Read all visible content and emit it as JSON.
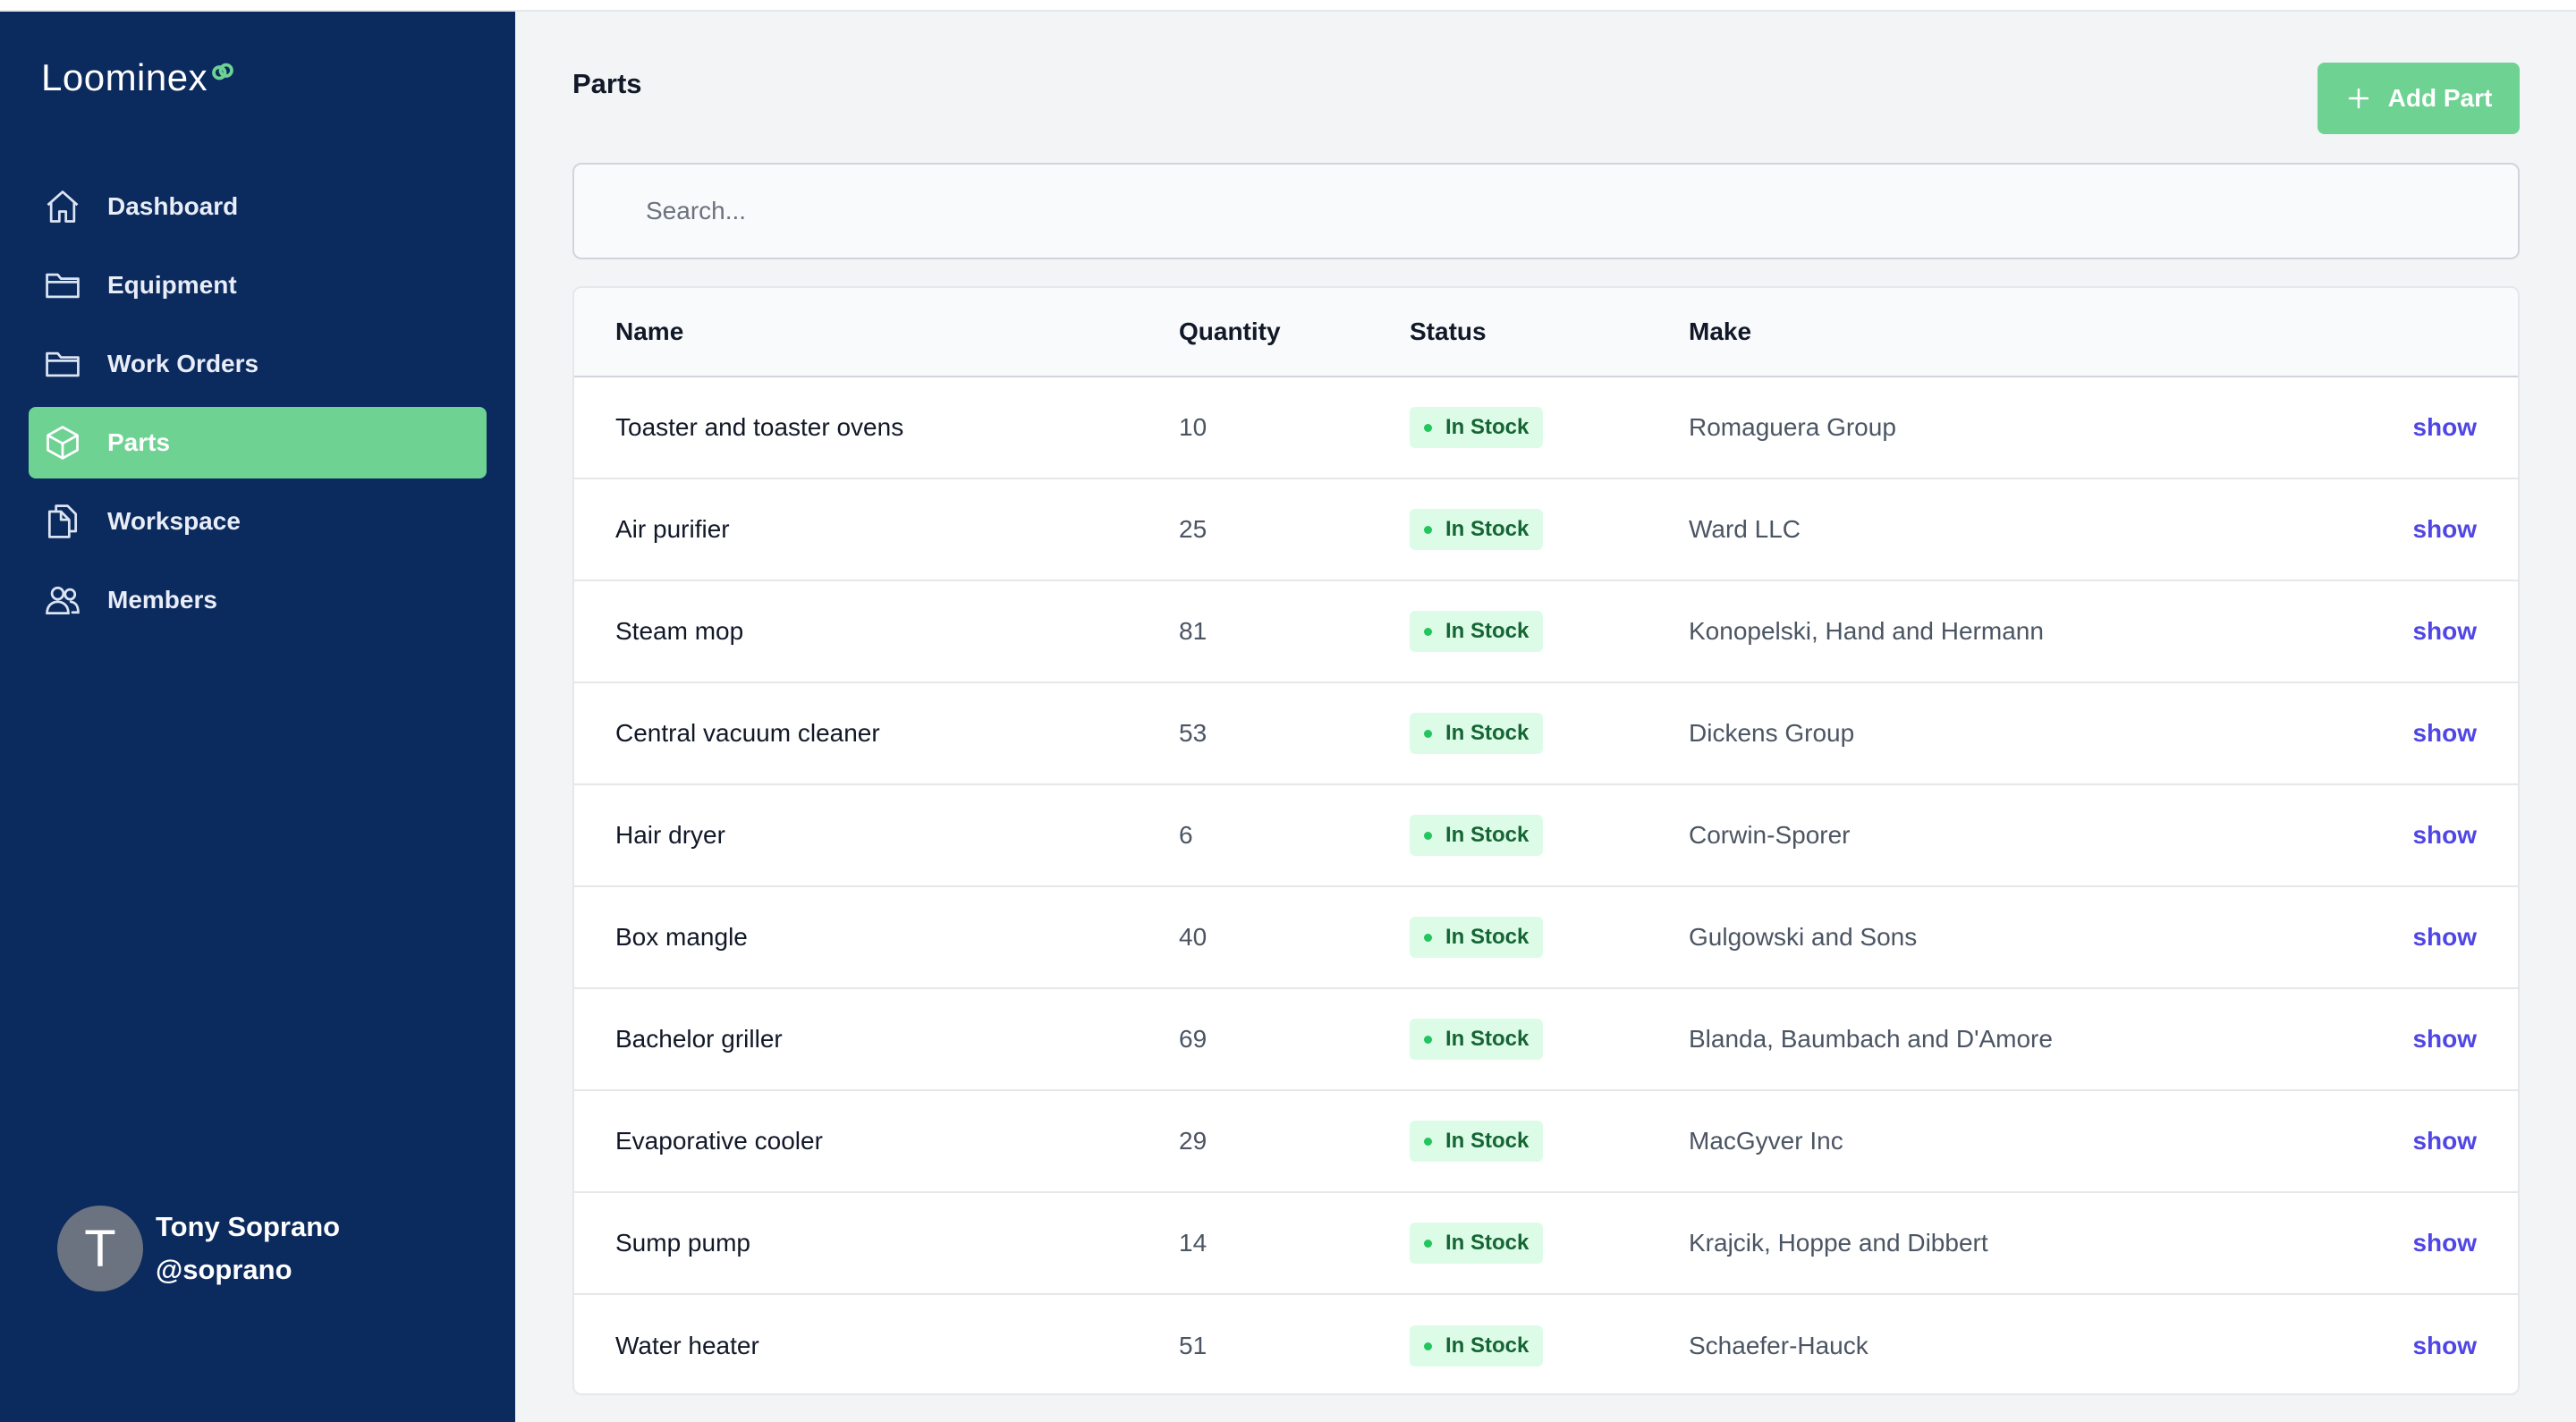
{
  "app": {
    "logo_text": "Loominex"
  },
  "sidebar": {
    "items": [
      {
        "label": "Dashboard",
        "icon": "home-icon",
        "active": false
      },
      {
        "label": "Equipment",
        "icon": "folder-icon",
        "active": false
      },
      {
        "label": "Work Orders",
        "icon": "folder-icon",
        "active": false
      },
      {
        "label": "Parts",
        "icon": "cube-icon",
        "active": true
      },
      {
        "label": "Workspace",
        "icon": "documents-icon",
        "active": false
      },
      {
        "label": "Members",
        "icon": "users-icon",
        "active": false
      }
    ],
    "user": {
      "initial": "T",
      "name": "Tony Soprano",
      "handle": "@soprano"
    }
  },
  "header": {
    "title": "Parts",
    "add_button_label": "Add Part"
  },
  "search": {
    "placeholder": "Search..."
  },
  "table": {
    "columns": [
      "Name",
      "Quantity",
      "Status",
      "Make"
    ],
    "rows": [
      {
        "name": "Toaster and toaster ovens",
        "quantity": "10",
        "status": "In Stock",
        "make": "Romaguera Group",
        "action": "show"
      },
      {
        "name": "Air purifier",
        "quantity": "25",
        "status": "In Stock",
        "make": "Ward LLC",
        "action": "show"
      },
      {
        "name": "Steam mop",
        "quantity": "81",
        "status": "In Stock",
        "make": "Konopelski, Hand and Hermann",
        "action": "show"
      },
      {
        "name": "Central vacuum cleaner",
        "quantity": "53",
        "status": "In Stock",
        "make": "Dickens Group",
        "action": "show"
      },
      {
        "name": "Hair dryer",
        "quantity": "6",
        "status": "In Stock",
        "make": "Corwin-Sporer",
        "action": "show"
      },
      {
        "name": "Box mangle",
        "quantity": "40",
        "status": "In Stock",
        "make": "Gulgowski and Sons",
        "action": "show"
      },
      {
        "name": "Bachelor griller",
        "quantity": "69",
        "status": "In Stock",
        "make": "Blanda, Baumbach and D'Amore",
        "action": "show"
      },
      {
        "name": "Evaporative cooler",
        "quantity": "29",
        "status": "In Stock",
        "make": "MacGyver Inc",
        "action": "show"
      },
      {
        "name": "Sump pump",
        "quantity": "14",
        "status": "In Stock",
        "make": "Krajcik, Hoppe and Dibbert",
        "action": "show"
      },
      {
        "name": "Water heater",
        "quantity": "51",
        "status": "In Stock",
        "make": "Schaefer-Hauck",
        "action": "show"
      }
    ]
  },
  "colors": {
    "sidebar_bg": "#0b2a5e",
    "accent_green": "#6dd292",
    "link": "#4f46e5",
    "badge_bg": "#dcfce7",
    "badge_text": "#166534"
  }
}
